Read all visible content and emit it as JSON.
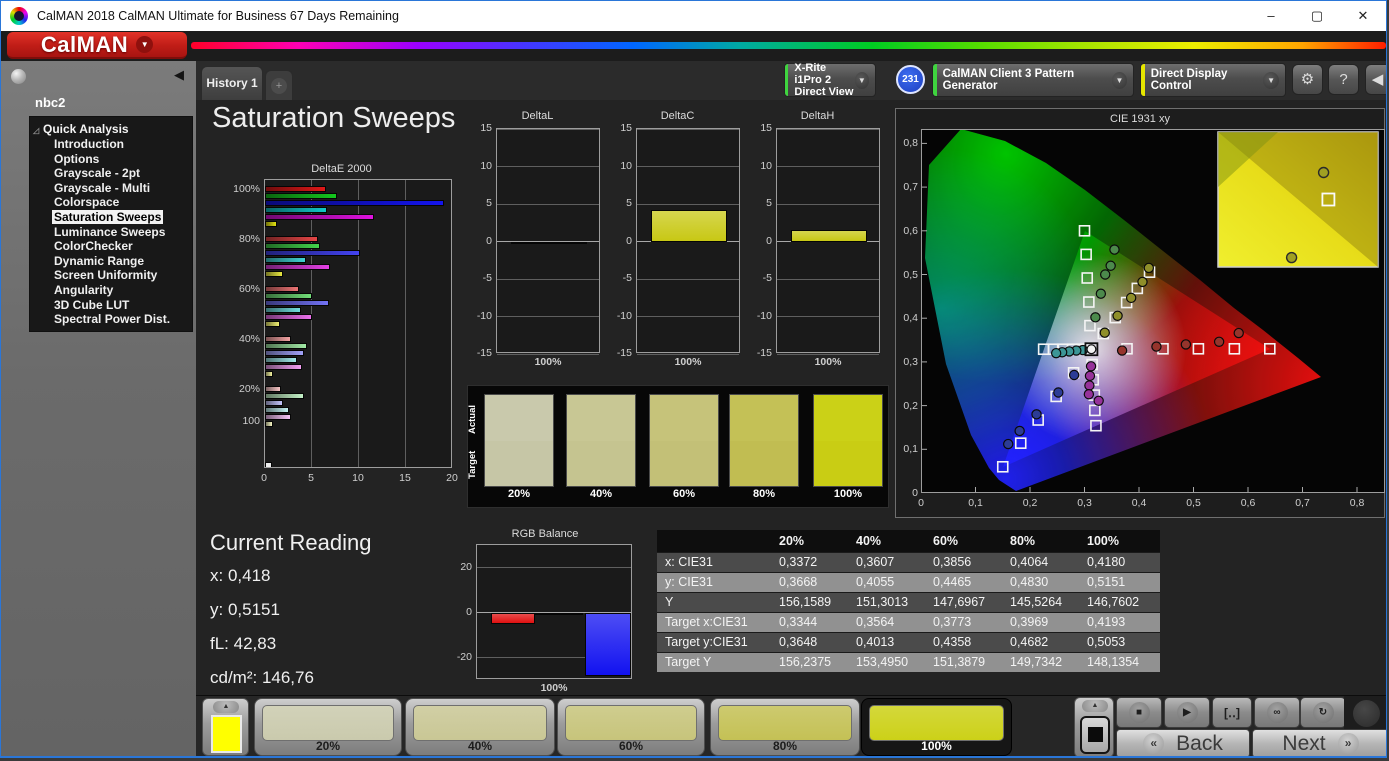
{
  "window": {
    "title": "CalMAN 2018 CalMAN Ultimate for Business 67 Days Remaining",
    "controls": {
      "minimize": "–",
      "maximize": "▢",
      "close": "✕"
    }
  },
  "logo": {
    "text": "CalMAN",
    "caret": "▼"
  },
  "toolbar": {
    "history_tab": "History 1",
    "add_tab": "+",
    "meter_button": {
      "line1": "X-Rite i1Pro 2",
      "line2": "Direct View",
      "status_color": "#3fd43f",
      "caret": "▼"
    },
    "badge": "231",
    "pattern_source_button": {
      "label": "CalMAN Client 3 Pattern Generator",
      "status_color": "#3fd43f",
      "caret": "▼"
    },
    "display_control_button": {
      "label": "Direct Display Control",
      "status_color": "#e6e600",
      "caret": "▼"
    },
    "settings_icon": "⚙",
    "help_icon": "?",
    "collapse_icon": "◀"
  },
  "sidebar": {
    "session": "nbc2",
    "tree_root": "Quick Analysis",
    "expander_icon": "◿",
    "collapse_icon": "◀",
    "items": [
      "Introduction",
      "Options",
      "Grayscale - 2pt",
      "Grayscale - Multi",
      "Colorspace",
      "Saturation Sweeps",
      "Luminance Sweeps",
      "ColorChecker",
      "Dynamic Range",
      "Screen Uniformity",
      "Angularity",
      "3D Cube LUT",
      "Spectral Power Dist."
    ],
    "selected_index": 5
  },
  "page": {
    "title": "Saturation Sweeps"
  },
  "chart_data": [
    {
      "type": "bar",
      "id": "deltae",
      "title": "DeltaE 2000",
      "orientation": "horizontal",
      "xlim": [
        0,
        20
      ],
      "xticks": [
        0,
        5,
        10,
        15,
        20
      ],
      "series_order": [
        "Red",
        "Green",
        "Blue",
        "Cyan",
        "Magenta",
        "Yellow"
      ],
      "base_colors": [
        "#e01818",
        "#14c81e",
        "#1414ee",
        "#12c8c8",
        "#e012e0",
        "#e2e212"
      ],
      "groups": [
        {
          "label": "100%",
          "saturation": 1.0,
          "values": [
            6.5,
            7.7,
            19.0,
            6.6,
            11.6,
            1.3
          ]
        },
        {
          "label": "80%",
          "saturation": 0.8,
          "values": [
            5.6,
            5.8,
            10.1,
            4.4,
            6.9,
            1.9
          ]
        },
        {
          "label": "60%",
          "saturation": 0.6,
          "values": [
            3.6,
            5.0,
            6.8,
            3.8,
            5.0,
            1.6
          ]
        },
        {
          "label": "40%",
          "saturation": 0.4,
          "values": [
            2.8,
            4.5,
            4.1,
            3.4,
            3.9,
            0.9
          ]
        },
        {
          "label": "20%",
          "saturation": 0.2,
          "values": [
            1.7,
            4.2,
            1.9,
            2.6,
            2.8,
            0.8
          ]
        },
        {
          "label": "100",
          "saturation": 0.0,
          "values": [
            0.7
          ]
        }
      ]
    },
    {
      "type": "bar",
      "id": "deltaL",
      "title": "DeltaL",
      "categories": [
        "100%"
      ],
      "values": [
        -0.2
      ],
      "ylim": [
        -15,
        15
      ],
      "yticks": [
        15,
        10,
        5,
        0,
        -5,
        -10,
        -15
      ],
      "bar_color": "#c8c814"
    },
    {
      "type": "bar",
      "id": "deltaC",
      "title": "DeltaC",
      "categories": [
        "100%"
      ],
      "values": [
        4.2
      ],
      "ylim": [
        -15,
        15
      ],
      "yticks": [
        15,
        10,
        5,
        0,
        -5,
        -10,
        -15
      ],
      "bar_color": "#c8c814"
    },
    {
      "type": "bar",
      "id": "deltaH",
      "title": "DeltaH",
      "categories": [
        "100%"
      ],
      "values": [
        1.6
      ],
      "ylim": [
        -15,
        15
      ],
      "yticks": [
        15,
        10,
        5,
        0,
        -5,
        -10,
        -15
      ],
      "bar_color": "#c8c814"
    },
    {
      "type": "bar",
      "id": "rgb_balance",
      "title": "RGB Balance",
      "categories": [
        "100%"
      ],
      "ylim": [
        -30,
        30
      ],
      "yticks": [
        20,
        0,
        -20
      ],
      "series": [
        {
          "name": "Red",
          "value": -5,
          "color": "#e01010"
        },
        {
          "name": "Green",
          "value": -1,
          "color": "#0c6e0c"
        },
        {
          "name": "Blue",
          "value": -28,
          "color": "#1212f0"
        }
      ]
    },
    {
      "type": "scatter",
      "id": "cie",
      "title": "CIE 1931 xy",
      "xlim": [
        0,
        0.85
      ],
      "ylim": [
        0,
        0.83
      ],
      "xtick_values": [
        0,
        0.1,
        0.2,
        0.3,
        0.4,
        0.5,
        0.6,
        0.7,
        0.8
      ],
      "xtick_labels": [
        "0",
        "0,1",
        "0,2",
        "0,3",
        "0,4",
        "0,5",
        "0,6",
        "0,7",
        "0,8"
      ],
      "ytick_values": [
        0,
        0.1,
        0.2,
        0.3,
        0.4,
        0.5,
        0.6,
        0.7,
        0.8
      ],
      "ytick_labels": [
        "0",
        "0,1",
        "0,2",
        "0,3",
        "0,4",
        "0,5",
        "0,6",
        "0,7",
        "0,8"
      ],
      "white_point": {
        "target": [
          0.3127,
          0.329
        ]
      },
      "sweeps": [
        {
          "name": "Red",
          "dot_color": "#96342c",
          "targets": [
            [
              0.378,
              0.33
            ],
            [
              0.444,
              0.33
            ],
            [
              0.509,
              0.33
            ],
            [
              0.575,
              0.33
            ],
            [
              0.64,
              0.33
            ]
          ],
          "measured": [
            [
              0.369,
              0.326
            ],
            [
              0.432,
              0.335
            ],
            [
              0.486,
              0.34
            ],
            [
              0.547,
              0.346
            ],
            [
              0.583,
              0.366
            ]
          ]
        },
        {
          "name": "Green",
          "dot_color": "#4c8a4c",
          "targets": [
            [
              0.31,
              0.383
            ],
            [
              0.308,
              0.437
            ],
            [
              0.305,
              0.492
            ],
            [
              0.303,
              0.546
            ],
            [
              0.3,
              0.6
            ]
          ],
          "measured": [
            [
              0.32,
              0.402
            ],
            [
              0.33,
              0.456
            ],
            [
              0.338,
              0.5
            ],
            [
              0.348,
              0.52
            ],
            [
              0.355,
              0.557
            ]
          ]
        },
        {
          "name": "Blue",
          "dot_color": "#2c3c96",
          "targets": [
            [
              0.28,
              0.275
            ],
            [
              0.248,
              0.221
            ],
            [
              0.215,
              0.167
            ],
            [
              0.183,
              0.114
            ],
            [
              0.15,
              0.06
            ]
          ],
          "measured": [
            [
              0.281,
              0.27
            ],
            [
              0.252,
              0.23
            ],
            [
              0.212,
              0.18
            ],
            [
              0.181,
              0.142
            ],
            [
              0.16,
              0.112
            ]
          ]
        },
        {
          "name": "Cyan",
          "dot_color": "#3c9696",
          "targets": [
            [
              0.295,
              0.329
            ],
            [
              0.278,
              0.329
            ],
            [
              0.26,
              0.329
            ],
            [
              0.243,
              0.329
            ],
            [
              0.225,
              0.329
            ]
          ],
          "measured": [
            [
              0.297,
              0.327
            ],
            [
              0.285,
              0.326
            ],
            [
              0.272,
              0.324
            ],
            [
              0.259,
              0.322
            ],
            [
              0.248,
              0.32
            ]
          ]
        },
        {
          "name": "Magenta",
          "dot_color": "#96329a",
          "targets": [
            [
              0.314,
              0.294
            ],
            [
              0.316,
              0.259
            ],
            [
              0.318,
              0.224
            ],
            [
              0.319,
              0.189
            ],
            [
              0.321,
              0.154
            ]
          ],
          "measured": [
            [
              0.312,
              0.29
            ],
            [
              0.31,
              0.268
            ],
            [
              0.309,
              0.246
            ],
            [
              0.308,
              0.226
            ],
            [
              0.326,
              0.211
            ]
          ]
        },
        {
          "name": "Yellow",
          "dot_color": "#8f8f2a",
          "targets": [
            [
              0.3344,
              0.3648
            ],
            [
              0.3564,
              0.4013
            ],
            [
              0.3773,
              0.4358
            ],
            [
              0.3969,
              0.4682
            ],
            [
              0.4193,
              0.5053
            ]
          ],
          "measured": [
            [
              0.3372,
              0.3668
            ],
            [
              0.3607,
              0.4055
            ],
            [
              0.3856,
              0.4465
            ],
            [
              0.4064,
              0.483
            ],
            [
              0.418,
              0.5151
            ]
          ]
        }
      ],
      "inset": {
        "markers": [
          {
            "type": "circle",
            "fx": 0.66,
            "fy": 0.3
          },
          {
            "type": "square",
            "fx": 0.69,
            "fy": 0.5
          },
          {
            "type": "circle",
            "fx": 0.46,
            "fy": 0.93
          }
        ]
      }
    }
  ],
  "actual_target_strip": {
    "row_labels": [
      "Actual",
      "Target"
    ],
    "columns": [
      {
        "label": "20%",
        "actual": "#c9c9ac",
        "target": "#c6c6a6"
      },
      {
        "label": "40%",
        "actual": "#c8c794",
        "target": "#c5c490"
      },
      {
        "label": "60%",
        "actual": "#c6c37a",
        "target": "#c3c077"
      },
      {
        "label": "80%",
        "actual": "#c4c156",
        "target": "#c1bd52"
      },
      {
        "label": "100%",
        "actual": "#cbd117",
        "target": "#c9cd14"
      }
    ]
  },
  "current_reading": {
    "title": "Current Reading",
    "lines": [
      "x: 0,418",
      "y: 0,5151",
      "fL: 42,83",
      "cd/m²: 146,76"
    ]
  },
  "table": {
    "headers": [
      "",
      "20%",
      "40%",
      "60%",
      "80%",
      "100%"
    ],
    "rows": [
      {
        "label": "x: CIE31",
        "values": [
          "0,3372",
          "0,3607",
          "0,3856",
          "0,4064",
          "0,4180"
        ]
      },
      {
        "label": "y: CIE31",
        "values": [
          "0,3668",
          "0,4055",
          "0,4465",
          "0,4830",
          "0,5151"
        ]
      },
      {
        "label": "Y",
        "values": [
          "156,1589",
          "151,3013",
          "147,6967",
          "145,5264",
          "146,7602"
        ]
      },
      {
        "label": "Target x:CIE31",
        "values": [
          "0,3344",
          "0,3564",
          "0,3773",
          "0,3969",
          "0,4193"
        ]
      },
      {
        "label": "Target y:CIE31",
        "values": [
          "0,3648",
          "0,4013",
          "0,4358",
          "0,4682",
          "0,5053"
        ]
      },
      {
        "label": "Target Y",
        "values": [
          "156,2375",
          "153,4950",
          "151,3879",
          "149,7342",
          "148,1354"
        ]
      }
    ]
  },
  "pattern_bar": {
    "mini_swatch_color": "#ffff00",
    "tiles": [
      {
        "label": "20%",
        "color": "#cacaad",
        "selected": false
      },
      {
        "label": "40%",
        "color": "#c9c795",
        "selected": false
      },
      {
        "label": "60%",
        "color": "#c7c47b",
        "selected": false
      },
      {
        "label": "80%",
        "color": "#c4c155",
        "selected": false
      },
      {
        "label": "100%",
        "color": "#ccd118",
        "selected": true
      }
    ],
    "transport": {
      "stop": "■",
      "play": "▶",
      "series": "[‥]",
      "continuous": "∞",
      "refresh": "↻"
    },
    "back": "Back",
    "next": "Next"
  }
}
